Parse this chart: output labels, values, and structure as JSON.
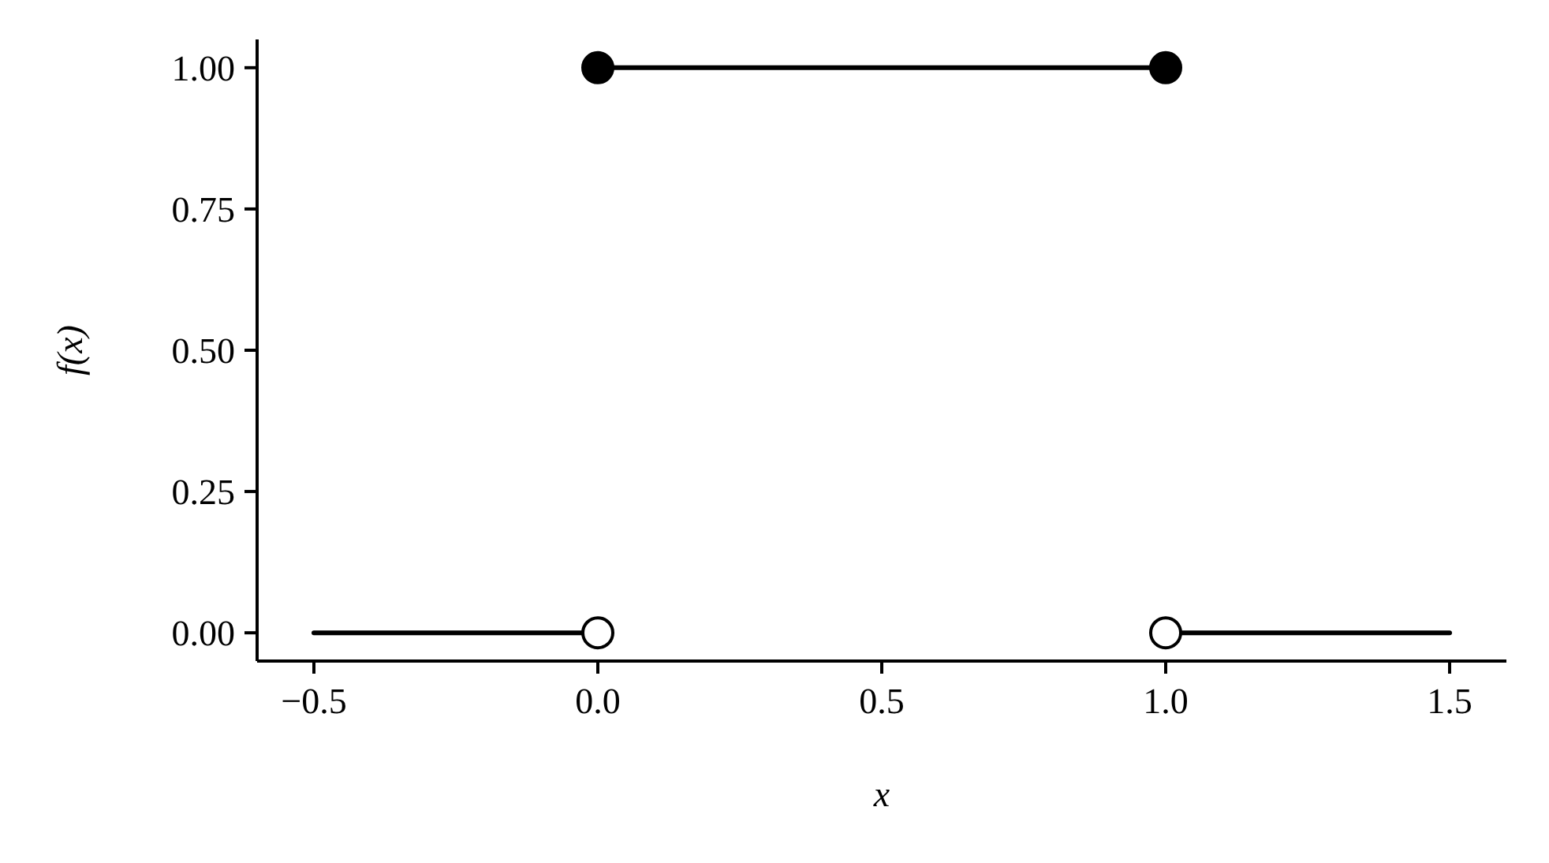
{
  "chart_data": {
    "type": "line",
    "xlabel": "x",
    "ylabel": "f(x)",
    "xlim": [
      -0.6,
      1.6
    ],
    "ylim": [
      -0.05,
      1.05
    ],
    "xticks": [
      {
        "value": -0.5,
        "label": "−0.5"
      },
      {
        "value": 0,
        "label": "0.0"
      },
      {
        "value": 0.5,
        "label": "0.5"
      },
      {
        "value": 1,
        "label": "1.0"
      },
      {
        "value": 1.5,
        "label": "1.5"
      }
    ],
    "yticks": [
      {
        "value": 0,
        "label": "0.00"
      },
      {
        "value": 0.25,
        "label": "0.25"
      },
      {
        "value": 0.5,
        "label": "0.50"
      },
      {
        "value": 0.75,
        "label": "0.75"
      },
      {
        "value": 1,
        "label": "1.00"
      }
    ],
    "grid": false,
    "marker": "none",
    "line_style": "solid",
    "series": [
      {
        "color": "#000000",
        "x": [
          -0.5,
          0
        ],
        "values": [
          0,
          0
        ]
      },
      {
        "color": "#000000",
        "x": [
          0,
          1
        ],
        "values": [
          1,
          1
        ]
      },
      {
        "color": "#000000",
        "x": [
          1,
          1.5
        ],
        "values": [
          0,
          0
        ]
      },
      {
        "type": "scatter",
        "marker": "circle",
        "color": "#000000",
        "x": [
          0,
          1
        ],
        "values": [
          1,
          1
        ]
      },
      {
        "type": "scatter",
        "marker": "circle",
        "color": "#ffffff",
        "x": [
          0,
          1
        ],
        "values": [
          0,
          0
        ]
      }
    ]
  }
}
